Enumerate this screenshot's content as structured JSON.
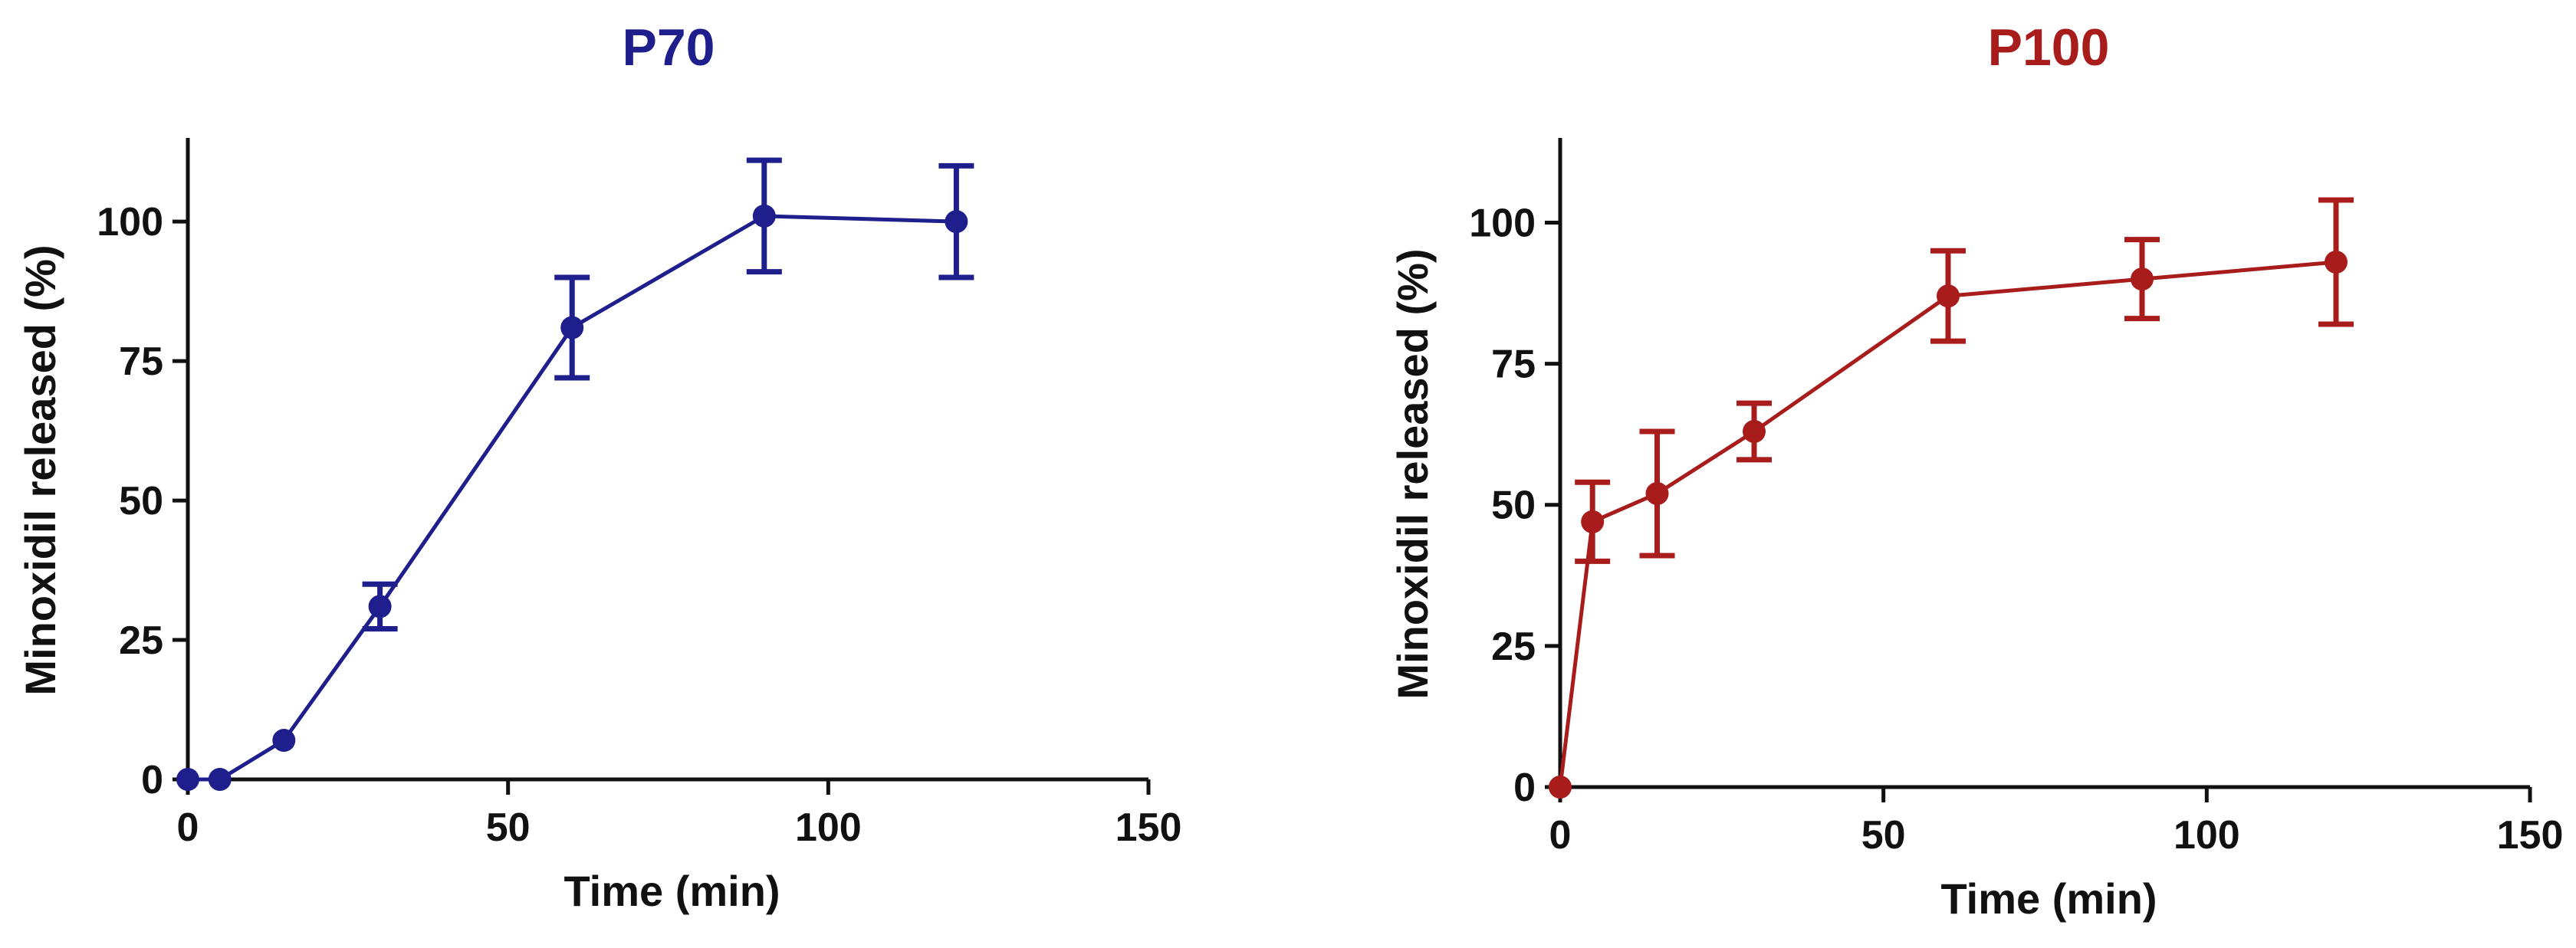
{
  "chart_data": [
    {
      "type": "line",
      "title": "P70",
      "title_color": "#1e1e8c",
      "xlabel": "Time (min)",
      "ylabel": "Minoxidil released (%)",
      "xlim": [
        0,
        150
      ],
      "ylim": [
        0,
        115
      ],
      "xticks": [
        0,
        50,
        100,
        150
      ],
      "yticks": [
        0,
        25,
        50,
        75,
        100
      ],
      "grid": false,
      "series": [
        {
          "color": "#1e1e8c",
          "x": [
            0,
            5,
            15,
            30,
            60,
            90,
            120
          ],
          "y": [
            0,
            0,
            7,
            31,
            81,
            101,
            100
          ],
          "error": [
            0,
            0,
            0,
            4,
            9,
            10,
            10
          ]
        }
      ]
    },
    {
      "type": "line",
      "title": "P100",
      "title_color": "#a81c1c",
      "xlabel": "Time (min)",
      "ylabel": "Minoxidil released (%)",
      "xlim": [
        0,
        150
      ],
      "ylim": [
        0,
        115
      ],
      "xticks": [
        0,
        50,
        100,
        150
      ],
      "yticks": [
        0,
        25,
        50,
        75,
        100
      ],
      "grid": false,
      "series": [
        {
          "color": "#a81c1c",
          "x": [
            0,
            5,
            15,
            30,
            60,
            90,
            120
          ],
          "y": [
            0,
            47,
            52,
            63,
            87,
            90,
            93
          ],
          "error": [
            0,
            7,
            11,
            5,
            8,
            7,
            11
          ]
        }
      ]
    }
  ]
}
